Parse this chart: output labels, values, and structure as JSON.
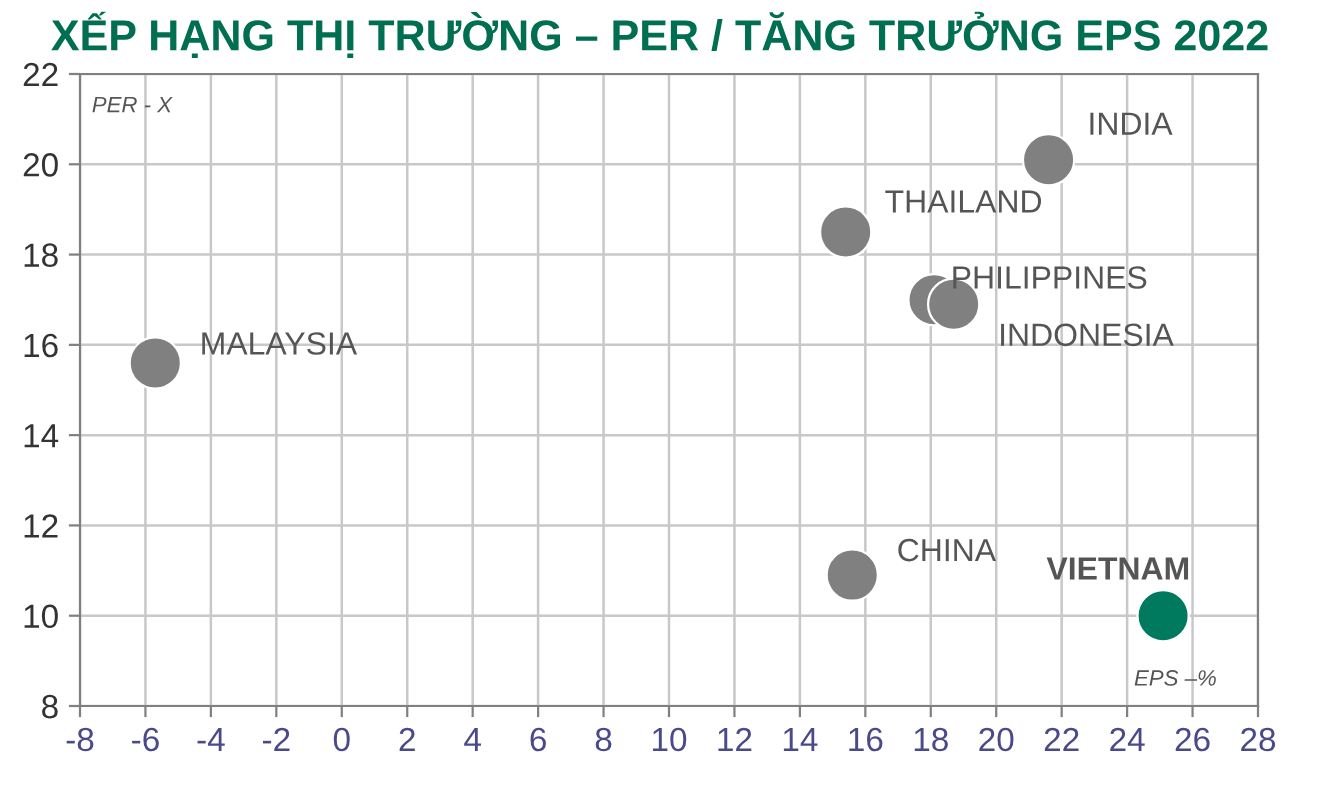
{
  "chart_data": {
    "type": "scatter",
    "title": "XẾP HẠNG THỊ TRƯỜNG – PER / TĂNG TRƯỞNG EPS 2022",
    "xlabel": "EPS –%",
    "ylabel": "PER - X",
    "x": [
      -5.7,
      21.6,
      15.4,
      18.1,
      18.7,
      15.6,
      25.1
    ],
    "values": [
      15.6,
      20.1,
      18.5,
      17.0,
      16.9,
      10.9,
      10.0
    ],
    "colors": [
      "#808080",
      "#808080",
      "#808080",
      "#808080",
      "#808080",
      "#808080",
      "#007a5e"
    ],
    "annotations": [
      {
        "text": "MALAYSIA",
        "x": -5.7,
        "y": 15.6
      },
      {
        "text": "INDIA",
        "x": 21.6,
        "y": 20.1
      },
      {
        "text": "THAILAND",
        "x": 15.4,
        "y": 18.5
      },
      {
        "text": "PHILIPPINES",
        "x": 18.1,
        "y": 17.0
      },
      {
        "text": "INDONESIA",
        "x": 18.7,
        "y": 16.9
      },
      {
        "text": "CHINA",
        "x": 15.6,
        "y": 10.9
      },
      {
        "text": "VIETNAM",
        "x": 25.1,
        "y": 10.0
      }
    ],
    "xlim": [
      -8,
      28
    ],
    "xticks": [
      -8,
      -6,
      -4,
      -2,
      0,
      2,
      4,
      6,
      8,
      10,
      12,
      14,
      16,
      18,
      20,
      22,
      24,
      26,
      28
    ],
    "ylim": [
      8,
      22
    ],
    "yticks": [
      8,
      10,
      12,
      14,
      16,
      18,
      20,
      22
    ],
    "grid": true,
    "marker": "circle"
  }
}
